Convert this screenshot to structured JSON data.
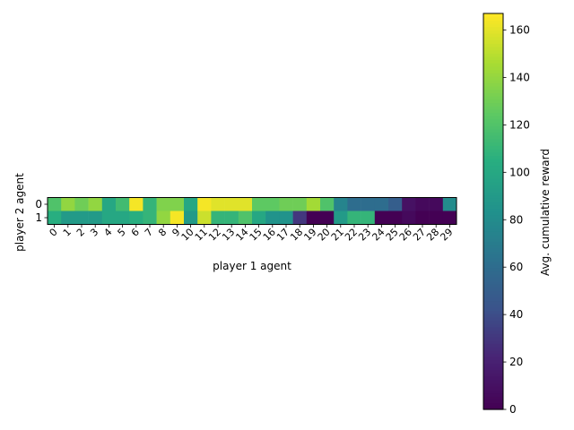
{
  "chart_data": {
    "type": "heatmap",
    "xlabel": "player 1 agent",
    "ylabel": "player 2 agent",
    "x_categories": [
      "0",
      "1",
      "2",
      "3",
      "4",
      "5",
      "6",
      "7",
      "8",
      "9",
      "10",
      "11",
      "12",
      "13",
      "14",
      "15",
      "16",
      "17",
      "18",
      "19",
      "20",
      "21",
      "22",
      "23",
      "24",
      "25",
      "26",
      "27",
      "28",
      "29"
    ],
    "y_categories": [
      "0",
      "1"
    ],
    "values": [
      [
        120,
        140,
        130,
        140,
        100,
        115,
        165,
        110,
        135,
        135,
        100,
        165,
        160,
        160,
        160,
        125,
        125,
        130,
        130,
        145,
        120,
        75,
        60,
        60,
        60,
        50,
        10,
        5,
        5,
        80
      ],
      [
        105,
        90,
        90,
        90,
        100,
        100,
        105,
        110,
        140,
        165,
        90,
        155,
        110,
        110,
        120,
        100,
        85,
        85,
        30,
        0,
        0,
        90,
        110,
        110,
        0,
        0,
        5,
        0,
        0,
        0
      ]
    ],
    "colorbar": {
      "label": "Avg. cumulative reward",
      "range": [
        0,
        167
      ],
      "ticks": [
        "0",
        "20",
        "40",
        "60",
        "80",
        "100",
        "120",
        "140",
        "160"
      ],
      "colormap": "viridis"
    }
  }
}
